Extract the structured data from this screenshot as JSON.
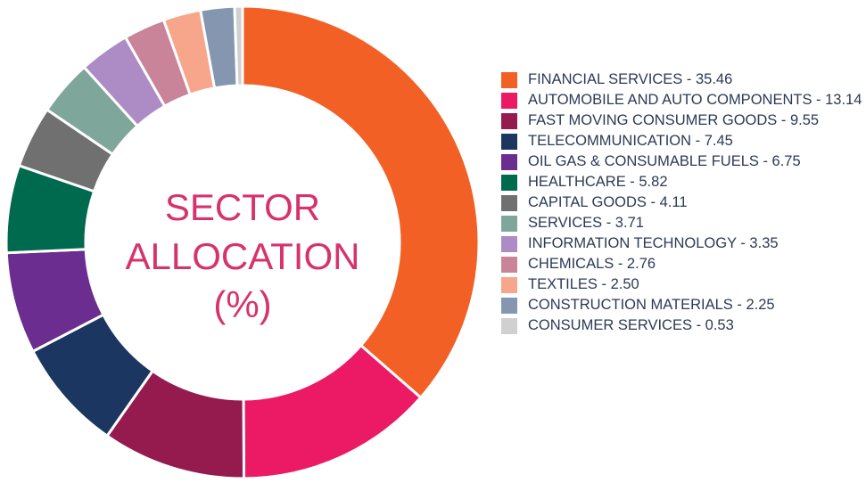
{
  "chart_data": {
    "type": "pie",
    "title": "SECTOR ALLOCATION (%)",
    "title_lines": [
      "SECTOR",
      "ALLOCATION",
      "(%)"
    ],
    "legend_position": "right",
    "categories": [
      "FINANCIAL SERVICES",
      "AUTOMOBILE AND AUTO COMPONENTS",
      "FAST MOVING CONSUMER GOODS",
      "TELECOMMUNICATION",
      "OIL GAS & CONSUMABLE FUELS",
      "HEALTHCARE",
      "CAPITAL GOODS",
      "SERVICES",
      "INFORMATION TECHNOLOGY",
      "CHEMICALS",
      "TEXTILES",
      "CONSTRUCTION MATERIALS",
      "CONSUMER SERVICES"
    ],
    "values": [
      35.46,
      13.14,
      9.55,
      7.45,
      6.75,
      5.82,
      4.11,
      3.71,
      3.35,
      2.76,
      2.5,
      2.25,
      0.53
    ],
    "legend_labels": [
      "FINANCIAL SERVICES - 35.46",
      "AUTOMOBILE AND AUTO COMPONENTS - 13.14",
      "FAST MOVING CONSUMER GOODS - 9.55",
      "TELECOMMUNICATION - 7.45",
      "OIL GAS & CONSUMABLE FUELS - 6.75",
      "HEALTHCARE - 5.82",
      "CAPITAL GOODS - 4.11",
      "SERVICES - 3.71",
      "INFORMATION TECHNOLOGY - 3.35",
      "CHEMICALS - 2.76",
      "TEXTILES - 2.50",
      "CONSTRUCTION MATERIALS - 2.25",
      "CONSUMER SERVICES - 0.53"
    ],
    "colors": [
      "#f26026",
      "#ec1a65",
      "#951b4e",
      "#1c3662",
      "#6b2d8f",
      "#006a4e",
      "#707070",
      "#7fa69a",
      "#ad8cc6",
      "#c98499",
      "#f7a68c",
      "#8496b0",
      "#d0d0d0"
    ]
  }
}
